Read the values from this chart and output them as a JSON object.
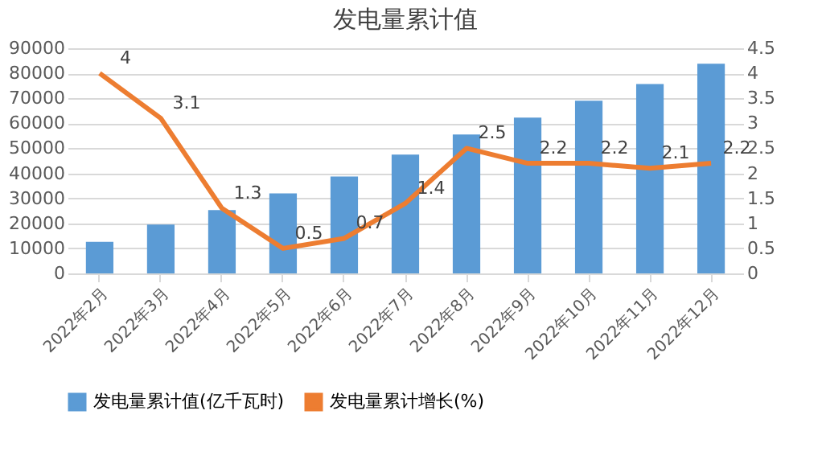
{
  "chart_data": {
    "type": "bar",
    "title": "发电量累计值",
    "categories": [
      "2022年2月",
      "2022年3月",
      "2022年4月",
      "2022年5月",
      "2022年6月",
      "2022年7月",
      "2022年8月",
      "2022年9月",
      "2022年10月",
      "2022年11月",
      "2022年12月"
    ],
    "series": [
      {
        "name": "发电量累计值(亿千瓦时)",
        "color": "#5b9bd5",
        "values": [
          12600,
          19500,
          25300,
          32000,
          38700,
          47500,
          55500,
          62300,
          69000,
          75700,
          83800
        ]
      },
      {
        "name": "发电量累计增长(%)",
        "type": "line",
        "axis": "y2",
        "color": "#ed7d31",
        "values": [
          4,
          3.1,
          1.3,
          0.5,
          0.7,
          1.4,
          2.5,
          2.2,
          2.2,
          2.1,
          2.2
        ],
        "value_labels": [
          "4",
          "3.1",
          "1.3",
          "0.5",
          "0.7",
          "1.4",
          "2.5",
          "2.2",
          "2.2",
          "2.1",
          "2.2"
        ]
      }
    ],
    "ylim": [
      0,
      90000
    ],
    "yticks": [
      0,
      10000,
      20000,
      30000,
      40000,
      50000,
      60000,
      70000,
      80000,
      90000
    ],
    "y2lim": [
      0,
      4.5
    ],
    "y2ticks": [
      0,
      0.5,
      1,
      1.5,
      2,
      2.5,
      3,
      3.5,
      4,
      4.5
    ],
    "grid": "y",
    "legend": "bottom",
    "marker": "none",
    "line_style": "solid"
  }
}
